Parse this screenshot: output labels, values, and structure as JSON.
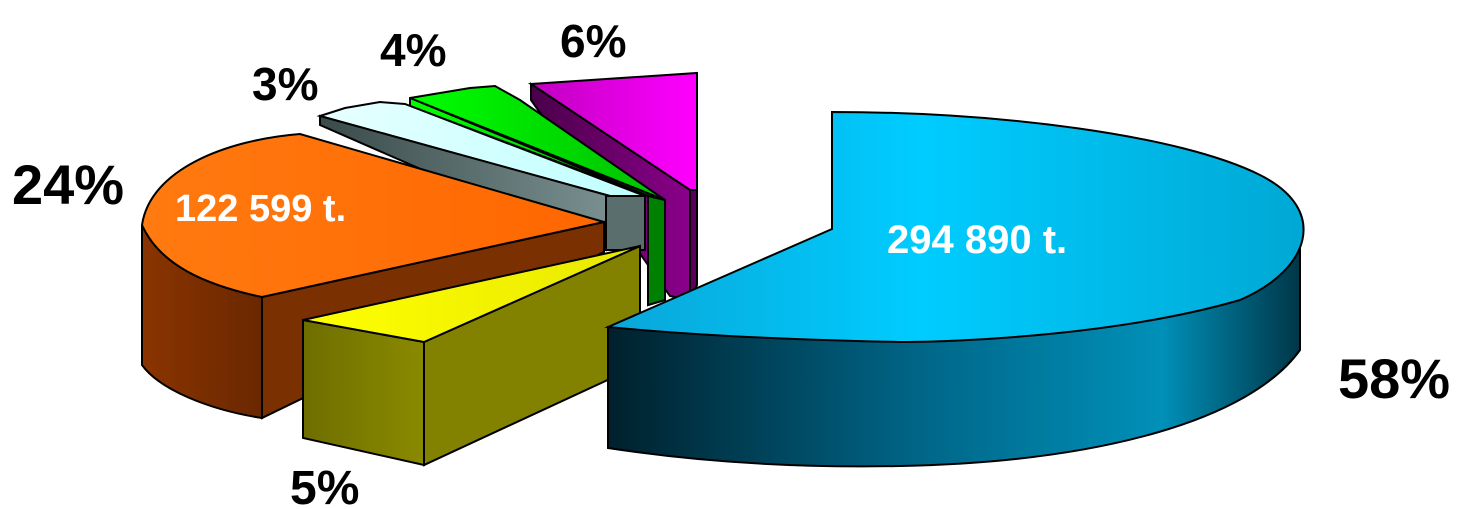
{
  "chart_data": {
    "type": "pie",
    "title": "",
    "slices": [
      {
        "label": "58%",
        "value": 58,
        "data_label": "294 890 t.",
        "color": "#00ccff"
      },
      {
        "label": "5%",
        "value": 5,
        "data_label": "",
        "color": "#ffff00"
      },
      {
        "label": "24%",
        "value": 24,
        "data_label": "122 599 t.",
        "color": "#ff6600"
      },
      {
        "label": "3%",
        "value": 3,
        "data_label": "",
        "color": "#ccffff"
      },
      {
        "label": "4%",
        "value": 4,
        "data_label": "",
        "color": "#00ff00"
      },
      {
        "label": "6%",
        "value": 6,
        "data_label": "",
        "color": "#ff00ff"
      }
    ]
  }
}
